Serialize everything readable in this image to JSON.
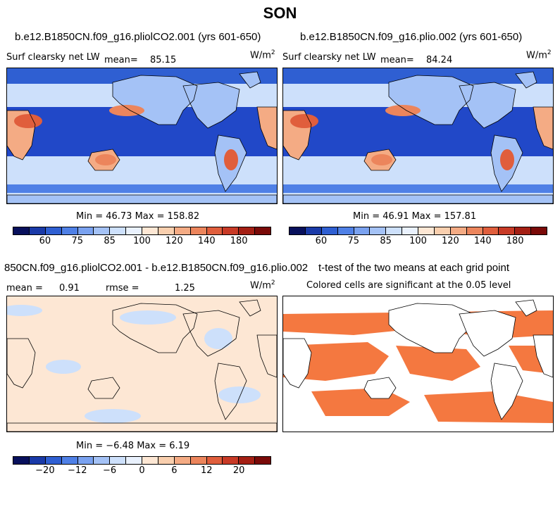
{
  "figure": {
    "title": "SON"
  },
  "panels": [
    {
      "case_title": "b.e12.B1850CN.f09_g16.pliolCO2.001 (yrs 601-650)",
      "variable_label": "Surf clearsky net LW",
      "stat_label": "mean=",
      "stat_value": "85.15",
      "units_base": "W/m",
      "units_exp": "2",
      "min_max": "Min =  46.73 Max = 158.82"
    },
    {
      "case_title": "b.e12.B1850CN.f09_g16.plio.002 (yrs 601-650)",
      "variable_label": "Surf clearsky net LW",
      "stat_label": "mean=",
      "stat_value": "84.24",
      "units_base": "W/m",
      "units_exp": "2",
      "min_max": "Min =  46.91 Max = 157.81"
    },
    {
      "case_title": "850CN.f09_g16.pliolCO2.001 - b.e12.B1850CN.f09_g16.plio.002",
      "mean_label": "mean =",
      "mean_value": "0.91",
      "rmse_label": "rmse =",
      "rmse_value": "1.25",
      "units_base": "W/m",
      "units_exp": "2",
      "min_max": "Min = −6.48 Max =  6.19"
    },
    {
      "case_title": "t-test of the two means at each grid point",
      "note": "Colored cells are significant at the 0.05 level"
    }
  ],
  "chart_data": [
    {
      "type": "heatmap",
      "title": "b.e12.B1850CN.f09_g16.pliolCO2.001 (yrs 601-650)",
      "variable": "Surf clearsky net LW",
      "units": "W/m2",
      "mean": 85.15,
      "min": 46.73,
      "max": 158.82,
      "colorbar_ticks": [
        "60",
        "75",
        "85",
        "100",
        "120",
        "140",
        "180"
      ],
      "colorbar_levels": 16
    },
    {
      "type": "heatmap",
      "title": "b.e12.B1850CN.f09_g16.plio.002 (yrs 601-650)",
      "variable": "Surf clearsky net LW",
      "units": "W/m2",
      "mean": 84.24,
      "min": 46.91,
      "max": 157.81,
      "colorbar_ticks": [
        "60",
        "75",
        "85",
        "100",
        "120",
        "140",
        "180"
      ],
      "colorbar_levels": 16
    },
    {
      "type": "heatmap",
      "title": "850CN.f09_g16.pliolCO2.001 - b.e12.B1850CN.f09_g16.plio.002",
      "units": "W/m2",
      "mean": 0.91,
      "rmse": 1.25,
      "min": -6.48,
      "max": 6.19,
      "colorbar_ticks": [
        "−20",
        "−12",
        "−6",
        "0",
        "6",
        "12",
        "20"
      ],
      "colorbar_levels": 16
    },
    {
      "type": "heatmap",
      "title": "t-test of the two means at each grid point",
      "note": "Colored cells are significant at the 0.05 level"
    }
  ],
  "colors": {
    "scale": [
      "#08105c",
      "#1a3aa8",
      "#2f5fd2",
      "#4f80e6",
      "#7aa2f0",
      "#a4c2f6",
      "#cde0fb",
      "#e9f1fd",
      "#fde7d4",
      "#f9cfae",
      "#f4ab84",
      "#ec855c",
      "#e05e3c",
      "#c83a26",
      "#a41f14",
      "#7a0a08"
    ],
    "ttest_fill": "#f47840",
    "ocean_dark": "#2148c8",
    "coast": "#000000"
  }
}
